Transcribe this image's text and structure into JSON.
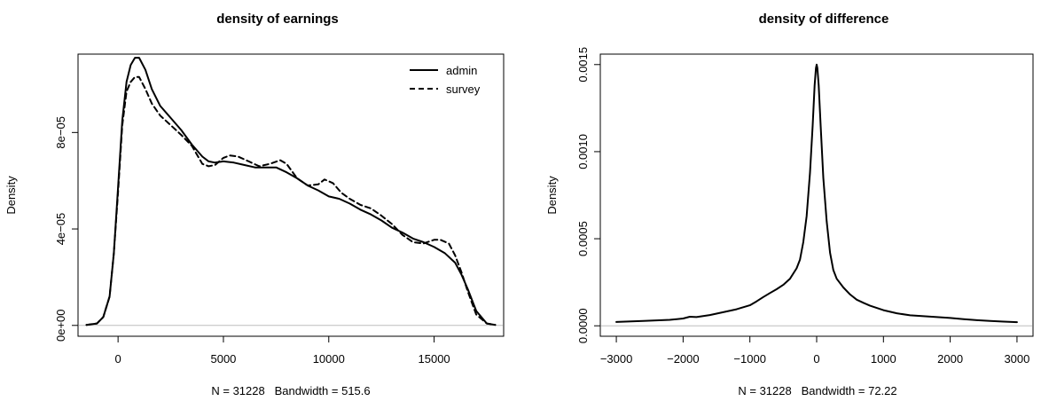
{
  "chart_data": [
    {
      "type": "line",
      "title": "density of earnings",
      "xlabel": "N = 31228   Bandwidth = 515.6",
      "ylabel": "Density",
      "xlim": [
        -1900,
        18300
      ],
      "ylim": [
        -4.5e-06,
        0.0001125
      ],
      "x_ticks": [
        0,
        5000,
        10000,
        15000
      ],
      "x_tick_labels": [
        "0",
        "5000",
        "10000",
        "15000"
      ],
      "y_ticks": [
        0,
        4e-05,
        8e-05
      ],
      "y_tick_labels": [
        "0e+00",
        "4e-05",
        "8e-05"
      ],
      "baseline": 0,
      "grid": false,
      "legend": {
        "position": "top-right",
        "entries": [
          "admin",
          "survey"
        ]
      },
      "series": [
        {
          "name": "admin",
          "line_style": "solid",
          "x": [
            -1500,
            -1000,
            -700,
            -400,
            -200,
            0,
            200,
            400,
            600,
            800,
            1000,
            1300,
            1600,
            2000,
            2500,
            3000,
            3500,
            4000,
            4300,
            4600,
            5000,
            5500,
            6000,
            6500,
            7000,
            7500,
            8000,
            8500,
            9000,
            9500,
            10000,
            10500,
            11000,
            11500,
            12000,
            12500,
            13000,
            13500,
            14000,
            14500,
            15000,
            15500,
            16000,
            16300,
            16600,
            17000,
            17500,
            17900
          ],
          "y": [
            2e-07,
            8e-07,
            3.5e-06,
            1.2e-05,
            3e-05,
            5.7e-05,
            8.5e-05,
            0.000101,
            0.000108,
            0.000111,
            0.000111,
            0.000106,
            9.8e-05,
            9.1e-05,
            8.6e-05,
            8.1e-05,
            7.5e-05,
            7e-05,
            6.8e-05,
            6.75e-05,
            6.8e-05,
            6.75e-05,
            6.65e-05,
            6.55e-05,
            6.55e-05,
            6.55e-05,
            6.35e-05,
            6.1e-05,
            5.8e-05,
            5.6e-05,
            5.35e-05,
            5.25e-05,
            5.05e-05,
            4.8e-05,
            4.6e-05,
            4.35e-05,
            4.05e-05,
            3.85e-05,
            3.6e-05,
            3.45e-05,
            3.25e-05,
            3e-05,
            2.6e-05,
            2.1e-05,
            1.5e-05,
            6e-06,
            8e-07,
            2e-07
          ]
        },
        {
          "name": "survey",
          "line_style": "dashed",
          "x": [
            -1500,
            -1000,
            -700,
            -400,
            -200,
            0,
            200,
            400,
            600,
            800,
            1000,
            1300,
            1600,
            2000,
            2500,
            3000,
            3500,
            4000,
            4300,
            4600,
            5000,
            5300,
            5700,
            6200,
            6700,
            7200,
            7700,
            8000,
            8500,
            9000,
            9500,
            9800,
            10200,
            10600,
            11000,
            11500,
            12000,
            12500,
            13000,
            13500,
            14000,
            14500,
            15000,
            15300,
            15700,
            16000,
            16300,
            16600,
            17000,
            17500,
            17900
          ],
          "y": [
            2e-07,
            8e-07,
            3.5e-06,
            1.2e-05,
            3e-05,
            5.5e-05,
            8.3e-05,
            9.7e-05,
            0.000101,
            0.000103,
            0.000103,
            9.8e-05,
            9.2e-05,
            8.7e-05,
            8.3e-05,
            7.9e-05,
            7.45e-05,
            6.7e-05,
            6.6e-05,
            6.65e-05,
            6.95e-05,
            7.05e-05,
            7e-05,
            6.8e-05,
            6.6e-05,
            6.7e-05,
            6.85e-05,
            6.7e-05,
            6.1e-05,
            5.8e-05,
            5.85e-05,
            6.05e-05,
            5.9e-05,
            5.5e-05,
            5.25e-05,
            5e-05,
            4.85e-05,
            4.55e-05,
            4.2e-05,
            3.75e-05,
            3.45e-05,
            3.4e-05,
            3.55e-05,
            3.55e-05,
            3.4e-05,
            2.9e-05,
            2.2e-05,
            1.4e-05,
            4.5e-06,
            8e-07,
            2e-07
          ]
        }
      ]
    },
    {
      "type": "line",
      "title": "density of difference",
      "xlabel": "N = 31228   Bandwidth = 72.22",
      "ylabel": "Density",
      "xlim": [
        -3240,
        3240
      ],
      "ylim": [
        -6e-05,
        0.00156
      ],
      "x_ticks": [
        -3000,
        -2000,
        -1000,
        0,
        1000,
        2000,
        3000
      ],
      "x_tick_labels": [
        "-3000",
        "-2000",
        "-1000",
        "0",
        "1000",
        "2000",
        "3000"
      ],
      "y_ticks": [
        0,
        0.0005,
        0.001,
        0.0015
      ],
      "y_tick_labels": [
        "0.0000",
        "0.0005",
        "0.0010",
        "0.0015"
      ],
      "baseline": 0,
      "grid": false,
      "series": [
        {
          "line_style": "solid",
          "x": [
            -3000,
            -2600,
            -2200,
            -2000,
            -1900,
            -1800,
            -1600,
            -1400,
            -1200,
            -1000,
            -900,
            -800,
            -700,
            -600,
            -500,
            -400,
            -300,
            -250,
            -200,
            -150,
            -100,
            -60,
            -30,
            -10,
            0,
            10,
            30,
            60,
            100,
            150,
            200,
            250,
            300,
            400,
            500,
            600,
            700,
            800,
            1000,
            1200,
            1400,
            1600,
            1800,
            2000,
            2200,
            2400,
            2600,
            2800,
            3000
          ],
          "y": [
            2.2e-05,
            2.8e-05,
            3.4e-05,
            4.2e-05,
            5.2e-05,
            5e-05,
            6.2e-05,
            7.8e-05,
            9.5e-05,
            0.000118,
            0.00014,
            0.000165,
            0.000188,
            0.00021,
            0.000235,
            0.00027,
            0.00033,
            0.00038,
            0.00048,
            0.00063,
            0.00088,
            0.00115,
            0.00138,
            0.00148,
            0.0015,
            0.00148,
            0.00138,
            0.00115,
            0.00085,
            0.0006,
            0.00042,
            0.00032,
            0.00027,
            0.00022,
            0.00018,
            0.00015,
            0.000132,
            0.000115,
            9e-05,
            7.2e-05,
            6e-05,
            5.5e-05,
            5e-05,
            4.5e-05,
            3.8e-05,
            3.2e-05,
            2.8e-05,
            2.4e-05,
            2.1e-05
          ]
        }
      ]
    }
  ]
}
